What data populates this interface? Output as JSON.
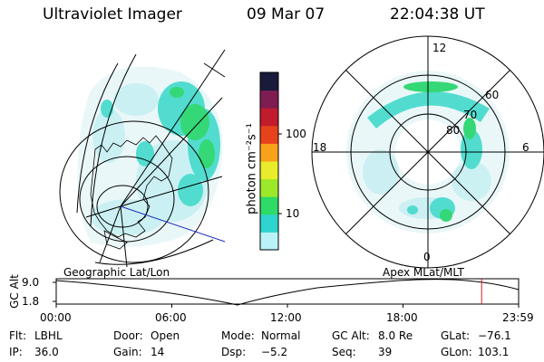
{
  "header": {
    "instrument": "Ultraviolet Imager",
    "date": "09 Mar 07",
    "time": "22:04:38 UT"
  },
  "colorbar": {
    "unit_label": "photon cm⁻²s⁻¹",
    "ticks": [
      "100",
      "10"
    ],
    "colors": [
      "#b9f3f8",
      "#2fd4cf",
      "#2edb67",
      "#9ce82a",
      "#e8ec2a",
      "#f7a21a",
      "#e8421c",
      "#c11c2c",
      "#7f1d52",
      "#1a1a3a"
    ]
  },
  "polar_plot": {
    "ring_labels": [
      "80",
      "70",
      "60"
    ],
    "mlt_labels": {
      "top": "12",
      "left": "18",
      "right": "6",
      "bottom": "0"
    }
  },
  "timeline": {
    "left_title": "Geographic Lat/Lon",
    "right_title": "Apex MLat/MLT",
    "axis_label": "GC Alt",
    "y_ticks": [
      "9.0",
      "1.8"
    ],
    "x_ticks": [
      "00:00",
      "06:00",
      "12:00",
      "18:00",
      "23:59"
    ],
    "current_marker_hour": 22.08,
    "marker_color": "#d02020"
  },
  "footer": {
    "row1": [
      {
        "key": "Flt:",
        "val": "LBHL"
      },
      {
        "key": "Door:",
        "val": "Open"
      },
      {
        "key": "Mode:",
        "val": "Normal"
      },
      {
        "key": "GC Alt:",
        "val": "8.0 Re"
      },
      {
        "key": "GLat:",
        "val": "−76.1"
      }
    ],
    "row2": [
      {
        "key": "IP:",
        "val": "36.0"
      },
      {
        "key": "Gain:",
        "val": "14"
      },
      {
        "key": "Dsp:",
        "val": "−5.2"
      },
      {
        "key": "Seq:",
        "val": "39"
      },
      {
        "key": "GLon:",
        "val": "103.1"
      }
    ]
  }
}
